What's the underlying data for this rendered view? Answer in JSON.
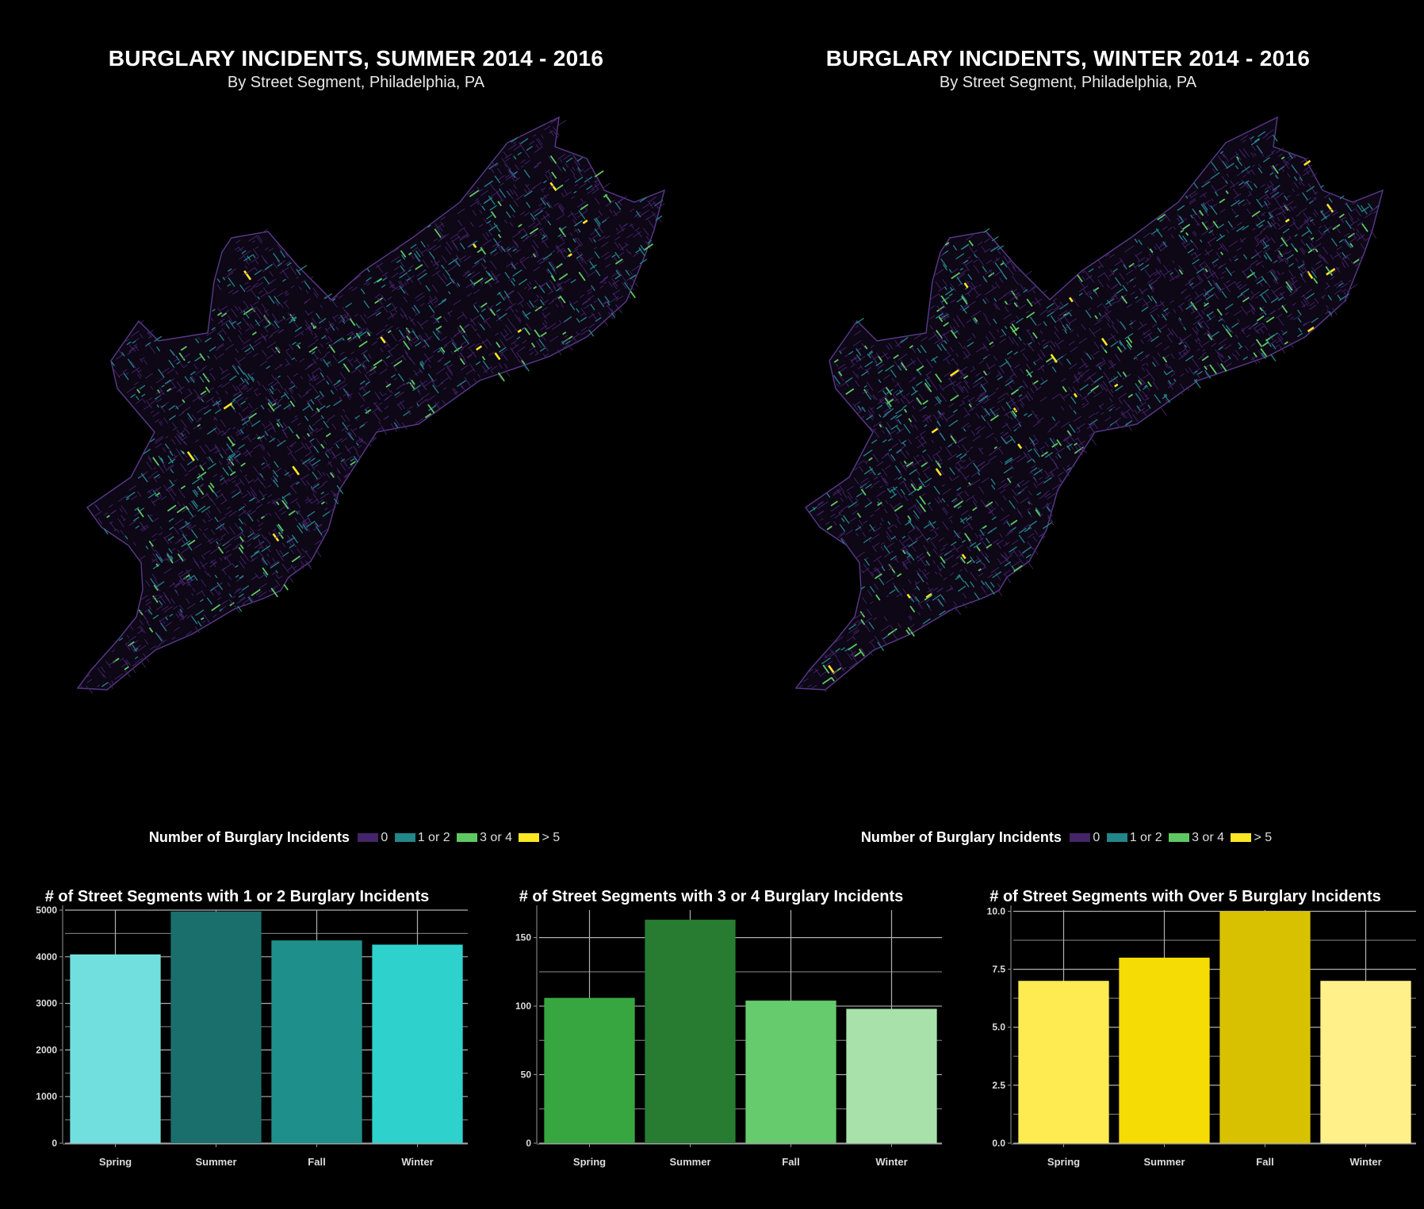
{
  "maps": [
    {
      "title": "BURGLARY INCIDENTS, SUMMER 2014 - 2016",
      "subtitle": "By Street Segment, Philadelphia, PA"
    },
    {
      "title": "BURGLARY INCIDENTS, WINTER 2014 - 2016",
      "subtitle": "By Street Segment, Philadelphia, PA"
    }
  ],
  "legend": {
    "title": "Number of Burglary Incidents",
    "items": [
      {
        "label": "0",
        "color": "#45256a"
      },
      {
        "label": "1 or 2",
        "color": "#23868a"
      },
      {
        "label": "3 or 4",
        "color": "#5ec962"
      },
      {
        "label": "> 5",
        "color": "#fde725"
      }
    ]
  },
  "chart_data": [
    {
      "type": "bar",
      "title": "# of Street Segments with 1 or 2 Burglary Incidents",
      "categories": [
        "Spring",
        "Summer",
        "Fall",
        "Winter"
      ],
      "values": [
        4050,
        4970,
        4350,
        4260
      ],
      "colors": [
        "#72dfdf",
        "#1a6f6d",
        "#1f8f8c",
        "#2fd1cd"
      ],
      "ylim": [
        0,
        5000
      ],
      "yticks": [
        0,
        1000,
        2000,
        3000,
        4000,
        5000
      ],
      "ytick_labels": [
        "0",
        "1000",
        "2000",
        "3000",
        "4000",
        "5000"
      ]
    },
    {
      "type": "bar",
      "title": "# of Street Segments with 3 or 4 Burglary Incidents",
      "categories": [
        "Spring",
        "Summer",
        "Fall",
        "Winter"
      ],
      "values": [
        106,
        163,
        104,
        98
      ],
      "colors": [
        "#37a641",
        "#287c32",
        "#66cb6c",
        "#a8e2aa"
      ],
      "ylim": [
        0,
        170
      ],
      "yticks": [
        0,
        50,
        100,
        150
      ],
      "ytick_labels": [
        "0",
        "50",
        "100",
        "150"
      ]
    },
    {
      "type": "bar",
      "title": "# of Street Segments with Over 5 Burglary Incidents",
      "categories": [
        "Spring",
        "Summer",
        "Fall",
        "Winter"
      ],
      "values": [
        7,
        8,
        10,
        7
      ],
      "colors": [
        "#feeb51",
        "#f6dc05",
        "#d8c200",
        "#fff08a"
      ],
      "ylim": [
        0,
        10.05
      ],
      "yticks": [
        0,
        2.5,
        5.0,
        7.5,
        10.0
      ],
      "ytick_labels": [
        "0.0",
        "2.5",
        "5.0",
        "7.5",
        "10.0"
      ]
    }
  ]
}
